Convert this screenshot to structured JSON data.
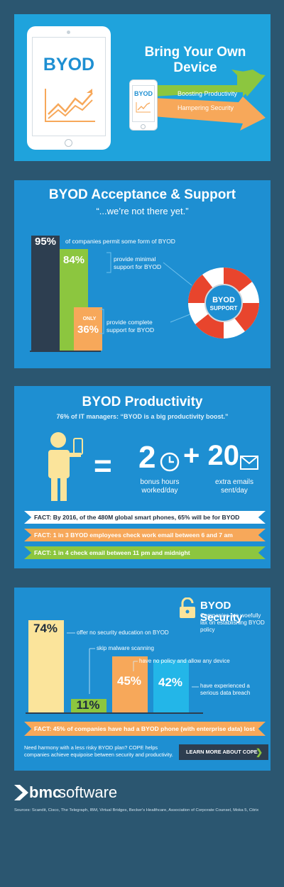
{
  "header": {
    "tablet_label": "BYOD",
    "title": "Bring Your Own Device",
    "phone_label": "BYOD",
    "arrow_up_label": "Boosting Productivity",
    "arrow_down_label": "Hampering Security"
  },
  "acceptance": {
    "title": "BYOD Acceptance & Support",
    "subtitle": "“...we’re not there yet.”",
    "bars": [
      {
        "value": "95%",
        "fraction": 0.95,
        "text": "of companies permit some form of BYOD",
        "color": "#2d3e50"
      },
      {
        "value": "84%",
        "fraction": 0.84,
        "text": "provide minimal support for BYOD",
        "color": "#8cc63f"
      },
      {
        "value": "36%",
        "prefix": "ONLY",
        "fraction": 0.36,
        "text": "provide complete support for BYOD",
        "color": "#f7a85a"
      }
    ],
    "lifebuoy_line1": "BYOD",
    "lifebuoy_line2": "SUPPORT"
  },
  "productivity": {
    "title": "BYOD Productivity",
    "subtitle": "76% of IT managers: “BYOD is a big productivity boost.”",
    "hours_value": "2",
    "hours_label1": "bonus hours",
    "hours_label2": "worked/day",
    "emails_value": "+ 20",
    "emails_label1": "extra emails",
    "emails_label2": "sent/day",
    "facts": [
      {
        "text": "FACT: By 2016, of the 480M global smart phones, 65% will be for BYOD",
        "color": "#ffffff",
        "text_color": "#1f2d3d"
      },
      {
        "text": "FACT: 1 in 3 BYOD employees check work email between 6 and 7 am",
        "color": "#f7a85a",
        "text_color": "#ffffff"
      },
      {
        "text": "FACT: 1 in 4 check email between 11 pm and midnight",
        "color": "#8cc63f",
        "text_color": "#ffffff"
      }
    ]
  },
  "security": {
    "title": "BYOD Security",
    "subtitle": "Companies are woefully lax on establishing BYOD policy",
    "bars": [
      {
        "value": "74%",
        "fraction": 0.74,
        "text": "offer no security education on BYOD",
        "color": "#fbe49b"
      },
      {
        "value": "11%",
        "fraction": 0.11,
        "text": "skip malware scanning",
        "color": "#8cc63f"
      },
      {
        "value": "45%",
        "fraction": 0.45,
        "text": "have no policy and allow any device",
        "color": "#f7a85a"
      },
      {
        "value": "42%",
        "fraction": 0.42,
        "text": "have experienced a serious data breach",
        "color": "#23b6e8"
      }
    ],
    "fact": "FACT: 45% of companies have had a BYOD phone (with enterprise data) lost",
    "cta_text": "Need harmony with a less risky BYOD plan? COPE helps companies achieve equipoise between security and productivity.",
    "cta_button": "LEARN MORE ABOUT COPE"
  },
  "footer": {
    "brand_bmc": "bmc",
    "brand_software": "software",
    "sources": "Sources: Scandit, Cisco, The Telegraph, IBM, Virtual Bridges, Becker's Healthcare, Association of Corporate Counsel, Moka 5, Citrix"
  },
  "colors": {
    "panel": "#1e8fd2",
    "background": "#2b5670",
    "green": "#8cc63f",
    "orange": "#f7a85a",
    "yellow": "#fbe49b",
    "cyan": "#23b6e8",
    "navy": "#2d3e50"
  }
}
